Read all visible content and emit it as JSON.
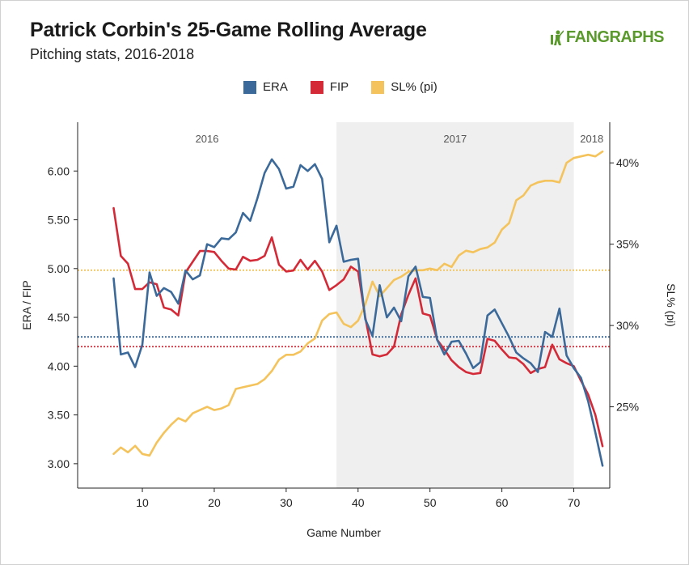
{
  "header": {
    "title": "Patrick Corbin's 25-Game Rolling Average",
    "subtitle": "Pitching stats, 2016-2018",
    "logo_text": "FANGRAPHS"
  },
  "colors": {
    "era": "#3b6a9a",
    "fip": "#d42a38",
    "sl": "#f4c35c",
    "shade": "#efefef",
    "logo": "#5a9a2c"
  },
  "chart_data": {
    "type": "line",
    "title": "Patrick Corbin's 25-Game Rolling Average",
    "subtitle": "Pitching stats, 2016-2018",
    "xlabel": "Game Number",
    "ylabel": "ERA / FIP",
    "ylabel_right": "SL% (pi)",
    "xlim": [
      1,
      75
    ],
    "ylim": [
      2.75,
      6.5
    ],
    "ylim_right": [
      20,
      42.5
    ],
    "x_ticks": [
      10,
      20,
      30,
      40,
      50,
      60,
      70
    ],
    "y_ticks": [
      "3.00",
      "3.50",
      "4.00",
      "4.50",
      "5.00",
      "5.50",
      "6.00"
    ],
    "y_ticks_right": [
      "25%",
      "30%",
      "35%",
      "40%"
    ],
    "grid": false,
    "legend_position": "top-center",
    "legend": [
      "ERA",
      "FIP",
      "SL% (pi)"
    ],
    "regions": [
      {
        "label": "2016",
        "start": 1,
        "end": 37,
        "shaded": false
      },
      {
        "label": "2017",
        "start": 37,
        "end": 70,
        "shaded": true
      },
      {
        "label": "2018",
        "start": 70,
        "end": 75,
        "shaded": false
      }
    ],
    "reference_lines": [
      {
        "series": "SL% (pi)",
        "axis": "right",
        "value": 33.4
      },
      {
        "series": "ERA",
        "axis": "left",
        "value": 4.3
      },
      {
        "series": "FIP",
        "axis": "left",
        "value": 4.2
      }
    ],
    "x": [
      6,
      7,
      8,
      9,
      10,
      11,
      12,
      13,
      14,
      15,
      16,
      17,
      18,
      19,
      20,
      21,
      22,
      23,
      24,
      25,
      26,
      27,
      28,
      29,
      30,
      31,
      32,
      33,
      34,
      35,
      36,
      37,
      38,
      39,
      40,
      41,
      42,
      43,
      44,
      45,
      46,
      47,
      48,
      49,
      50,
      51,
      52,
      53,
      54,
      55,
      56,
      57,
      58,
      59,
      60,
      61,
      62,
      63,
      64,
      65,
      66,
      67,
      68,
      69,
      70,
      71,
      72,
      73,
      74
    ],
    "series": [
      {
        "name": "ERA",
        "axis": "left",
        "values": [
          4.9,
          4.12,
          4.14,
          3.99,
          4.22,
          4.96,
          4.72,
          4.8,
          4.76,
          4.64,
          4.98,
          4.89,
          4.93,
          5.25,
          5.22,
          5.31,
          5.3,
          5.37,
          5.57,
          5.49,
          5.72,
          5.98,
          6.12,
          6.02,
          5.82,
          5.84,
          6.06,
          6.0,
          6.07,
          5.92,
          5.27,
          5.44,
          5.07,
          5.09,
          5.1,
          4.48,
          4.31,
          4.83,
          4.5,
          4.6,
          4.46,
          4.92,
          5.02,
          4.71,
          4.7,
          4.27,
          4.12,
          4.25,
          4.26,
          4.13,
          3.98,
          4.04,
          4.52,
          4.58,
          4.44,
          4.3,
          4.14,
          4.08,
          4.03,
          3.94,
          4.35,
          4.3,
          4.59,
          4.11,
          3.98,
          3.88,
          3.64,
          3.32,
          2.98
        ]
      },
      {
        "name": "FIP",
        "axis": "left",
        "values": [
          5.62,
          5.13,
          5.05,
          4.79,
          4.79,
          4.86,
          4.84,
          4.6,
          4.58,
          4.52,
          4.96,
          5.07,
          5.18,
          5.18,
          5.17,
          5.08,
          5.0,
          4.99,
          5.12,
          5.08,
          5.09,
          5.13,
          5.32,
          5.04,
          4.97,
          4.98,
          5.09,
          4.99,
          5.08,
          4.97,
          4.78,
          4.83,
          4.89,
          5.02,
          4.97,
          4.5,
          4.12,
          4.1,
          4.12,
          4.2,
          4.53,
          4.73,
          4.9,
          4.54,
          4.52,
          4.27,
          4.17,
          4.06,
          3.99,
          3.94,
          3.92,
          3.93,
          4.28,
          4.26,
          4.17,
          4.09,
          4.08,
          4.02,
          3.93,
          3.97,
          3.99,
          4.22,
          4.07,
          4.03,
          4.0,
          3.85,
          3.71,
          3.5,
          3.18
        ]
      },
      {
        "name": "SL% (pi)",
        "axis": "right",
        "values": [
          22.1,
          22.5,
          22.2,
          22.6,
          22.1,
          22.0,
          22.8,
          23.4,
          23.9,
          24.3,
          24.1,
          24.6,
          24.8,
          25.0,
          24.8,
          24.9,
          25.1,
          26.1,
          26.2,
          26.3,
          26.4,
          26.7,
          27.2,
          27.9,
          28.2,
          28.2,
          28.4,
          28.9,
          29.2,
          30.3,
          30.7,
          30.8,
          30.1,
          29.9,
          30.3,
          31.3,
          32.7,
          31.8,
          32.3,
          32.8,
          33.0,
          33.3,
          33.4,
          33.4,
          33.5,
          33.4,
          33.8,
          33.6,
          34.3,
          34.6,
          34.5,
          34.7,
          34.8,
          35.1,
          35.9,
          36.3,
          37.7,
          38.0,
          38.6,
          38.8,
          38.9,
          38.9,
          38.8,
          40.0,
          40.3,
          40.4,
          40.5,
          40.4,
          40.7
        ]
      }
    ]
  }
}
